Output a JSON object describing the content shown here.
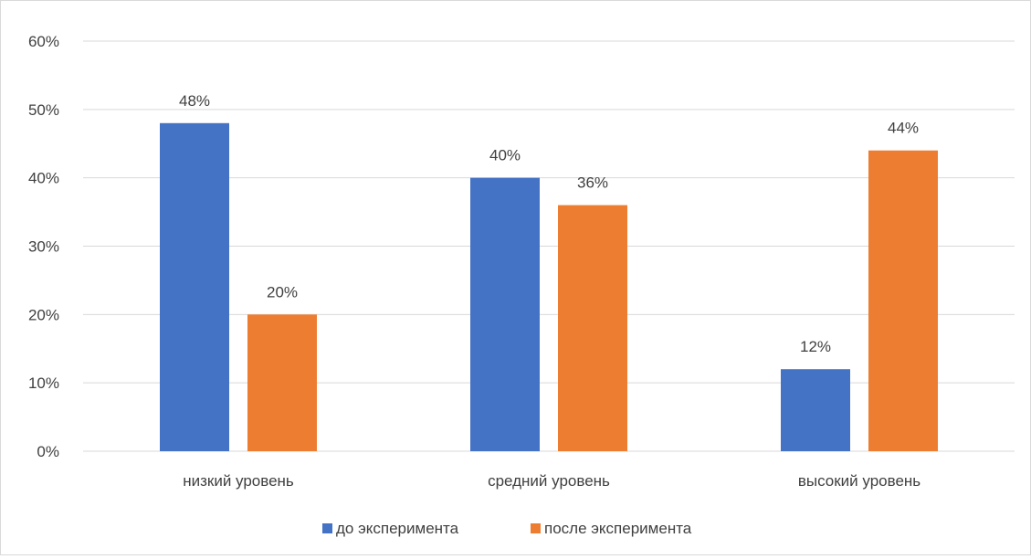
{
  "chart_data": {
    "type": "bar",
    "title": "",
    "xlabel": "",
    "ylabel": "",
    "categories": [
      "низкий уровень",
      "средний уровень",
      "высокий уровень"
    ],
    "series": [
      {
        "name": "до эксперимента",
        "values": [
          48,
          40,
          12
        ],
        "color": "#4472C4"
      },
      {
        "name": "после эксперимента",
        "values": [
          20,
          36,
          44
        ],
        "color": "#ED7D31"
      }
    ],
    "ylim": [
      0,
      60
    ],
    "yticks": [
      0,
      10,
      20,
      30,
      40,
      50,
      60
    ],
    "value_format": "percent",
    "ytick_labels": [
      "0%",
      "10%",
      "20%",
      "30%",
      "40%",
      "50%",
      "60%"
    ],
    "data_labels": [
      [
        "48%",
        "40%",
        "12%"
      ],
      [
        "20%",
        "36%",
        "44%"
      ]
    ],
    "grid": true,
    "legend_position": "bottom",
    "gridline_color": "#d9d9d9"
  }
}
